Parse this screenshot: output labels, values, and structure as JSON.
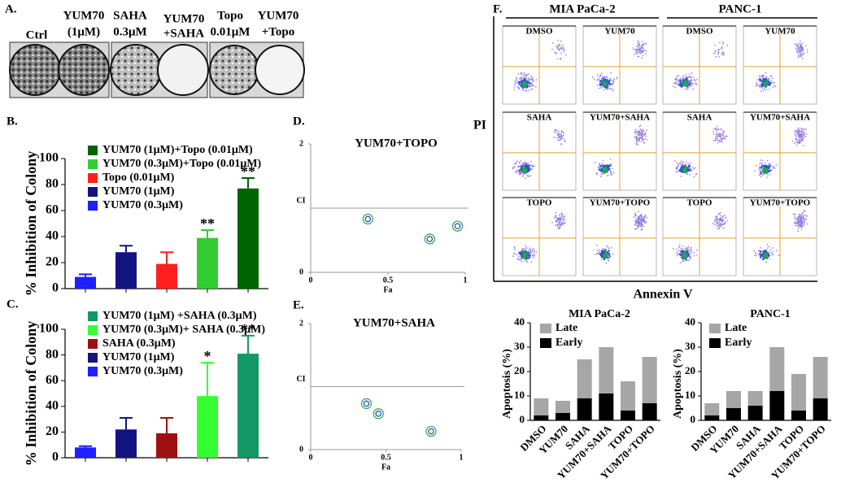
{
  "panel_a": {
    "label": "A.",
    "plates": [
      [
        "Ctrl"
      ],
      [
        "YUM70",
        "(1μM)"
      ],
      [
        "SAHA",
        "0.3μM"
      ],
      [
        "YUM70",
        "+SAHA"
      ],
      [
        "Topo",
        "0.01μM"
      ],
      [
        "YUM70",
        "+Topo"
      ]
    ]
  },
  "panel_f": {
    "label": "F.",
    "headers": [
      "MIA PaCa-2",
      "PANC-1"
    ],
    "y_axis": "PI",
    "x_axis": "Annexin V",
    "cells": [
      [
        "DMSO",
        "YUM70",
        "DMSO",
        "YUM70"
      ],
      [
        "SAHA",
        "YUM70+SAHA",
        "SAHA",
        "YUM70+SAHA"
      ],
      [
        "TOPO",
        "YUM70+TOPO",
        "TOPO",
        "YUM70+TOPO"
      ]
    ]
  },
  "chart_data": [
    {
      "type": "bar",
      "panel_label": "B.",
      "ylabel": "% Inhibition of Colony",
      "categories": [
        null,
        null,
        null,
        null,
        null
      ],
      "values": [
        9,
        28,
        19,
        39,
        77
      ],
      "errors": [
        2,
        5,
        9,
        6,
        8
      ],
      "colors": [
        "#1f1fff",
        "#141480",
        "#ff1f1f",
        "#33cc33",
        "#006400"
      ],
      "significance": [
        null,
        null,
        null,
        "**",
        "**"
      ],
      "legend": [
        {
          "name": "YUM70 (1μM)+Topo (0.01μM)",
          "color": "#006400"
        },
        {
          "name": "YUM70 (0.3μM)+Topo (0.01μM)",
          "color": "#33cc33"
        },
        {
          "name": "Topo (0.01μM)",
          "color": "#ff1f1f"
        },
        {
          "name": "YUM70 (1μM)",
          "color": "#141480"
        },
        {
          "name": "YUM70 (0.3μM)",
          "color": "#1f1fff"
        }
      ],
      "ylim": [
        0,
        100
      ],
      "yticks": [
        0,
        20,
        40,
        60,
        80,
        100
      ]
    },
    {
      "type": "bar",
      "panel_label": "C.",
      "ylabel": "% Inhibition of Colony",
      "categories": [
        null,
        null,
        null,
        null,
        null
      ],
      "values": [
        8,
        22,
        19,
        48,
        81
      ],
      "errors": [
        1,
        9,
        12,
        26,
        14
      ],
      "colors": [
        "#1f1fff",
        "#141480",
        "#a01010",
        "#33ff33",
        "#139966"
      ],
      "significance": [
        null,
        null,
        null,
        "*",
        "**"
      ],
      "legend": [
        {
          "name": "YUM70 (1μM) +SAHA (0.3μM)",
          "color": "#139966"
        },
        {
          "name": "YUM70 (0.3μM)+ SAHA (0.3μM)",
          "color": "#33ff33"
        },
        {
          "name": "SAHA (0.3μM)",
          "color": "#a01010"
        },
        {
          "name": "YUM70 (1μM)",
          "color": "#141480"
        },
        {
          "name": "YUM70 (0.3μM)",
          "color": "#1f1fff"
        }
      ],
      "ylim": [
        0,
        100
      ],
      "yticks": [
        0,
        20,
        40,
        60,
        80,
        100
      ]
    },
    {
      "type": "scatter",
      "panel_label": "D.",
      "title": "YUM70+TOPO",
      "xlabel": "Fa",
      "ylabel": "CI",
      "x": [
        0.37,
        0.77,
        0.95
      ],
      "y": [
        0.83,
        0.52,
        0.72
      ],
      "reference_line": 1,
      "xlim": [
        0,
        1
      ],
      "xticks": [
        0,
        0.5,
        1
      ],
      "ylim": [
        0,
        2
      ],
      "yticks": [
        0,
        2
      ]
    },
    {
      "type": "scatter",
      "panel_label": "E.",
      "title": "YUM70+SAHA",
      "xlabel": "Fa",
      "ylabel": "CI",
      "x": [
        0.37,
        0.45,
        0.8
      ],
      "y": [
        0.73,
        0.57,
        0.29
      ],
      "reference_line": 1,
      "xlim": [
        0,
        1
      ],
      "xticks": [
        0,
        0.5,
        1
      ],
      "ylim": [
        0,
        2
      ],
      "yticks": [
        0,
        2
      ]
    },
    {
      "type": "stacked_bar",
      "title": "MIA PaCa-2",
      "ylabel": "Apoptosis (%)",
      "categories": [
        "DMSO",
        "YUM70",
        "SAHA",
        "YUM70+SAHA",
        "TOPO",
        "YUM70+TOPO"
      ],
      "series": [
        {
          "name": "Early",
          "color": "#000000",
          "values": [
            2,
            3,
            9,
            11,
            4,
            7
          ]
        },
        {
          "name": "Late",
          "color": "#a6a6a6",
          "values": [
            7,
            5,
            16,
            19,
            12,
            19
          ]
        }
      ],
      "ylim": [
        0,
        40
      ],
      "yticks": [
        0,
        10,
        20,
        30,
        40
      ]
    },
    {
      "type": "stacked_bar",
      "title": "PANC-1",
      "ylabel": "Apoptosis (%)",
      "categories": [
        "DMSO",
        "YUM70",
        "SAHA",
        "YUM70+SAHA",
        "TOPO",
        "YUM70+TOPO"
      ],
      "series": [
        {
          "name": "Early",
          "color": "#000000",
          "values": [
            2,
            5,
            6,
            12,
            4,
            9
          ]
        },
        {
          "name": "Late",
          "color": "#a6a6a6",
          "values": [
            5,
            7,
            6,
            18,
            15,
            17
          ]
        }
      ],
      "ylim": [
        0,
        40
      ],
      "yticks": [
        0,
        10,
        20,
        30,
        40
      ]
    }
  ]
}
